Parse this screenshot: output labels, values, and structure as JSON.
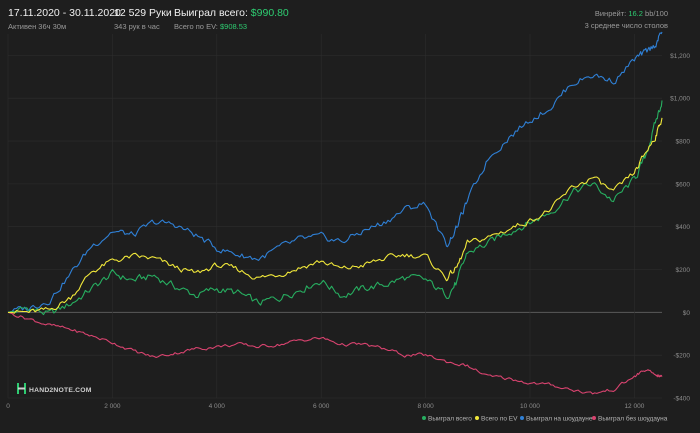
{
  "header": {
    "period": "17.11.2020 - 30.11.2020",
    "active": "Активен 36ч 30м",
    "hands": "12 529 Руки",
    "hands_rate": "343 рук в час",
    "won_label": "Выиграл всего:",
    "won_value": "$990.80",
    "ev_label": "Всего по EV:",
    "ev_value": "$908.53",
    "vinrate_label": "Винрейт:",
    "vinrate_value": "16.2",
    "vinrate_unit": "bb/100",
    "tables_line": "3 среднее число столов"
  },
  "logo": {
    "text": "HAND2NOTE.COM",
    "icon": "h2n-logo-icon"
  },
  "colors": {
    "background": "#1e1e1e",
    "grid": "#2d2d2d",
    "zero_line": "#5a5a5a",
    "won": "#27ae60",
    "ev": "#f1e83a",
    "showdown": "#2f80d6",
    "nonshowdown": "#d8436f"
  },
  "chart_data": {
    "type": "line",
    "xlim": [
      0,
      12529
    ],
    "ylim": [
      -400,
      1300
    ],
    "x_ticks": [
      {
        "value": 0,
        "label": "0"
      },
      {
        "value": 2000,
        "label": "2 000"
      },
      {
        "value": 4000,
        "label": "4 000"
      },
      {
        "value": 6000,
        "label": "6 000"
      },
      {
        "value": 8000,
        "label": "8 000"
      },
      {
        "value": 10000,
        "label": "10 000"
      },
      {
        "value": 12000,
        "label": "12 000"
      }
    ],
    "y_ticks": [
      {
        "value": 1200,
        "label": "$1,200"
      },
      {
        "value": 1000,
        "label": "$1,000"
      },
      {
        "value": 800,
        "label": "$800"
      },
      {
        "value": 600,
        "label": "$600"
      },
      {
        "value": 400,
        "label": "$400"
      },
      {
        "value": 200,
        "label": "$200"
      },
      {
        "value": 0,
        "label": "$0"
      },
      {
        "value": -200,
        "label": "-$200"
      },
      {
        "value": -400,
        "label": "-$400"
      }
    ],
    "legend_position": "bottom-right",
    "series": [
      {
        "name": "Выиграл всего",
        "color": "#27ae60",
        "points": [
          [
            0,
            0
          ],
          [
            400,
            20
          ],
          [
            800,
            -10
          ],
          [
            1200,
            40
          ],
          [
            1600,
            110
          ],
          [
            2000,
            180
          ],
          [
            2400,
            150
          ],
          [
            2800,
            170
          ],
          [
            3200,
            120
          ],
          [
            3600,
            80
          ],
          [
            4000,
            110
          ],
          [
            4400,
            90
          ],
          [
            4800,
            40
          ],
          [
            5200,
            70
          ],
          [
            5600,
            110
          ],
          [
            6000,
            150
          ],
          [
            6400,
            80
          ],
          [
            6800,
            110
          ],
          [
            7200,
            130
          ],
          [
            7600,
            160
          ],
          [
            8000,
            150
          ],
          [
            8400,
            80
          ],
          [
            8600,
            140
          ],
          [
            8800,
            280
          ],
          [
            9200,
            320
          ],
          [
            9600,
            380
          ],
          [
            10000,
            420
          ],
          [
            10400,
            470
          ],
          [
            10800,
            560
          ],
          [
            11200,
            600
          ],
          [
            11600,
            520
          ],
          [
            12000,
            620
          ],
          [
            12200,
            720
          ],
          [
            12400,
            880
          ],
          [
            12529,
            990
          ]
        ]
      },
      {
        "name": "Всего по EV",
        "color": "#f1e83a",
        "points": [
          [
            0,
            0
          ],
          [
            400,
            0
          ],
          [
            800,
            10
          ],
          [
            1200,
            70
          ],
          [
            1600,
            190
          ],
          [
            2000,
            240
          ],
          [
            2400,
            260
          ],
          [
            2800,
            250
          ],
          [
            3200,
            210
          ],
          [
            3600,
            180
          ],
          [
            4000,
            220
          ],
          [
            4400,
            200
          ],
          [
            4800,
            160
          ],
          [
            5200,
            180
          ],
          [
            5600,
            210
          ],
          [
            6000,
            240
          ],
          [
            6400,
            200
          ],
          [
            6800,
            220
          ],
          [
            7200,
            250
          ],
          [
            7600,
            270
          ],
          [
            8000,
            260
          ],
          [
            8400,
            160
          ],
          [
            8600,
            210
          ],
          [
            8800,
            320
          ],
          [
            9200,
            350
          ],
          [
            9600,
            390
          ],
          [
            10000,
            430
          ],
          [
            10400,
            480
          ],
          [
            10800,
            580
          ],
          [
            11200,
            630
          ],
          [
            11600,
            560
          ],
          [
            12000,
            650
          ],
          [
            12200,
            740
          ],
          [
            12400,
            820
          ],
          [
            12529,
            908
          ]
        ]
      },
      {
        "name": "Выиграл на шоудауне",
        "color": "#2f80d6",
        "points": [
          [
            0,
            0
          ],
          [
            400,
            20
          ],
          [
            800,
            60
          ],
          [
            1200,
            180
          ],
          [
            1600,
            310
          ],
          [
            2000,
            380
          ],
          [
            2400,
            360
          ],
          [
            2800,
            420
          ],
          [
            3200,
            410
          ],
          [
            3600,
            360
          ],
          [
            4000,
            300
          ],
          [
            4400,
            270
          ],
          [
            4800,
            250
          ],
          [
            5200,
            300
          ],
          [
            5600,
            340
          ],
          [
            6000,
            350
          ],
          [
            6400,
            330
          ],
          [
            6800,
            380
          ],
          [
            7200,
            420
          ],
          [
            7600,
            480
          ],
          [
            8000,
            510
          ],
          [
            8400,
            310
          ],
          [
            8600,
            400
          ],
          [
            8800,
            520
          ],
          [
            9200,
            720
          ],
          [
            9600,
            820
          ],
          [
            10000,
            900
          ],
          [
            10400,
            960
          ],
          [
            10800,
            1070
          ],
          [
            11200,
            1110
          ],
          [
            11600,
            1080
          ],
          [
            12000,
            1180
          ],
          [
            12200,
            1210
          ],
          [
            12400,
            1250
          ],
          [
            12529,
            1310
          ]
        ]
      },
      {
        "name": "Выиграл без шоудауна",
        "color": "#d8436f",
        "points": [
          [
            0,
            0
          ],
          [
            400,
            -30
          ],
          [
            800,
            -60
          ],
          [
            1200,
            -80
          ],
          [
            1600,
            -110
          ],
          [
            2000,
            -140
          ],
          [
            2400,
            -180
          ],
          [
            2800,
            -210
          ],
          [
            3200,
            -190
          ],
          [
            3600,
            -170
          ],
          [
            4000,
            -160
          ],
          [
            4400,
            -150
          ],
          [
            4800,
            -160
          ],
          [
            5200,
            -150
          ],
          [
            5600,
            -130
          ],
          [
            6000,
            -120
          ],
          [
            6400,
            -150
          ],
          [
            6800,
            -150
          ],
          [
            7200,
            -170
          ],
          [
            7600,
            -200
          ],
          [
            8000,
            -200
          ],
          [
            8400,
            -230
          ],
          [
            8800,
            -250
          ],
          [
            9200,
            -300
          ],
          [
            9600,
            -310
          ],
          [
            10000,
            -330
          ],
          [
            10400,
            -340
          ],
          [
            10800,
            -360
          ],
          [
            11200,
            -380
          ],
          [
            11600,
            -360
          ],
          [
            12000,
            -300
          ],
          [
            12200,
            -270
          ],
          [
            12400,
            -290
          ],
          [
            12529,
            -300
          ]
        ]
      }
    ]
  }
}
